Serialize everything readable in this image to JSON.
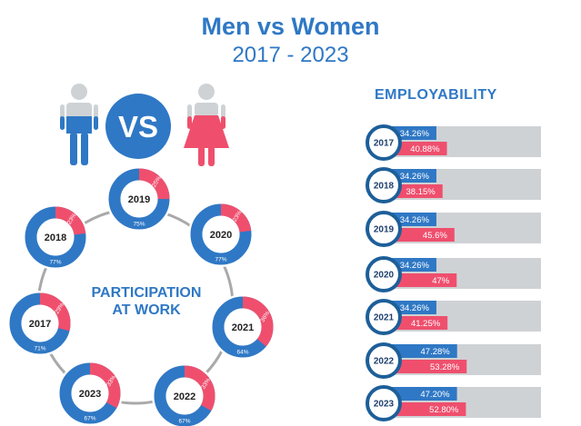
{
  "header": {
    "title": "Men vs Women",
    "subtitle": "2017 - 2023"
  },
  "vs_label": "VS",
  "icons": {
    "men": "man-icon",
    "women": "woman-icon"
  },
  "colors": {
    "blue": "#2f78c5",
    "pink": "#ef4f6d",
    "gray": "#cfd2d5",
    "ring": "#a9a9a9"
  },
  "participation": {
    "title_line1": "PARTICIPATION",
    "title_line2": "AT WORK"
  },
  "employability": {
    "title": "EMPLOYABILITY"
  },
  "chart_data": [
    {
      "type": "pie",
      "title": "PARTICIPATION AT WORK",
      "series": [
        {
          "year": "2017",
          "women": 29,
          "men": 71,
          "women_label": "29%",
          "men_label": "71%"
        },
        {
          "year": "2018",
          "women": 23,
          "men": 77,
          "women_label": "23%",
          "men_label": "77%"
        },
        {
          "year": "2019",
          "women": 25,
          "men": 75,
          "women_label": "25%",
          "men_label": "75%"
        },
        {
          "year": "2020",
          "women": 23,
          "men": 77,
          "women_label": "23%",
          "men_label": "77%"
        },
        {
          "year": "2021",
          "women": 36,
          "men": 64,
          "women_label": "36%",
          "men_label": "64%"
        },
        {
          "year": "2022",
          "women": 33,
          "men": 67,
          "women_label": "33%",
          "men_label": "67%"
        },
        {
          "year": "2023",
          "women": 33,
          "men": 67,
          "women_label": "33%",
          "men_label": "67%"
        }
      ]
    },
    {
      "type": "bar",
      "title": "EMPLOYABILITY",
      "categories": [
        "2017",
        "2018",
        "2019",
        "2020",
        "2021",
        "2022",
        "2023"
      ],
      "ylim": [
        0,
        100
      ],
      "series": [
        {
          "values": [
            34.26,
            34.26,
            34.26,
            34.26,
            34.26,
            47.28,
            47.2
          ],
          "labels": [
            "34.26%",
            "34.26%",
            "34.26%",
            "34.26%",
            "34.26%",
            "47.28%",
            "47.20%"
          ]
        },
        {
          "values": [
            40.88,
            38.15,
            45.6,
            47,
            41.25,
            53.28,
            52.8
          ],
          "labels": [
            "40.88%",
            "38.15%",
            "45.6%",
            "47%",
            "41.25%",
            "53.28%",
            "52.80%"
          ]
        }
      ]
    }
  ]
}
